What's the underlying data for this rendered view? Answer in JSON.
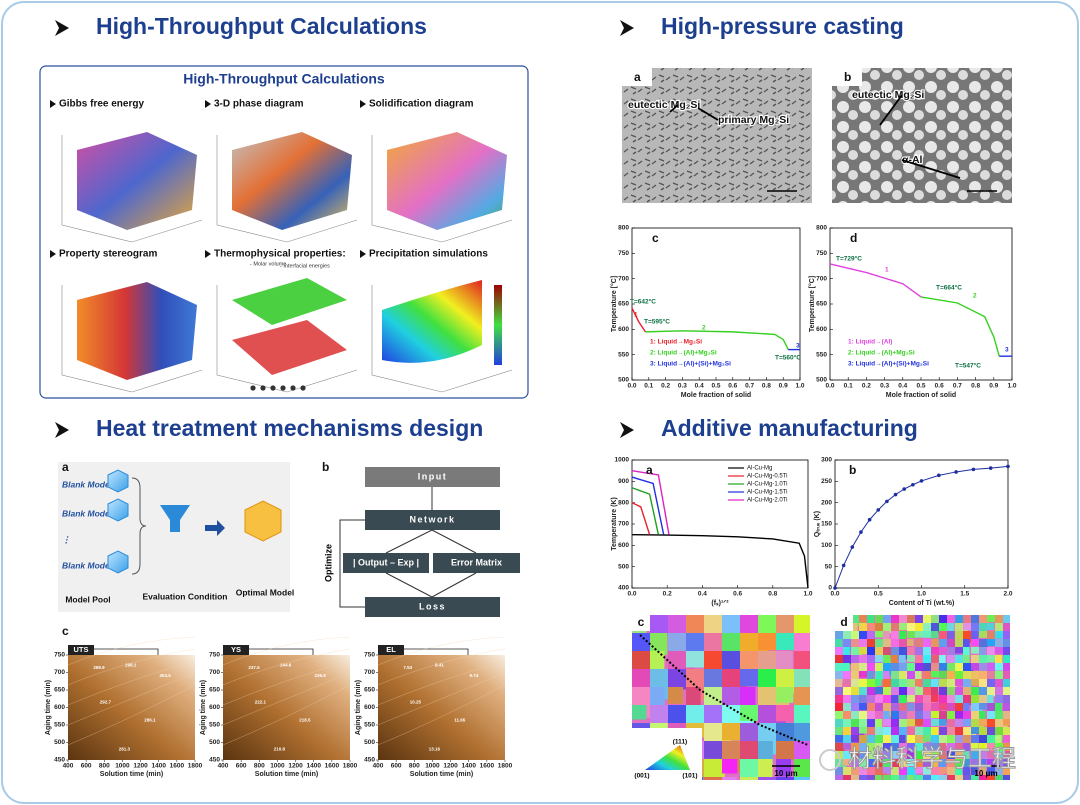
{
  "sections": [
    {
      "title": "High-Throughput Calculations"
    },
    {
      "title": "High-pressure casting"
    },
    {
      "title": "Heat treatment mechanisms design"
    },
    {
      "title": "Additive manufacturing"
    }
  ],
  "htc": {
    "title": "High-Throughput Calculations",
    "panels": [
      {
        "title": "Gibbs free energy"
      },
      {
        "title": "3-D phase diagram"
      },
      {
        "title": "Solidification diagram"
      },
      {
        "title": "Property stereogram"
      },
      {
        "title": "Thermophysical properties:",
        "notes": [
          "- Molar volume",
          "- Interfacial energies"
        ]
      },
      {
        "title": "Precipitation simulations"
      }
    ]
  },
  "micrographs": [
    {
      "label": "a",
      "notes": [
        "eutectic Mg₂Si",
        "primary Mg₂Si"
      ]
    },
    {
      "label": "b",
      "notes": [
        "eutectic Mg₂Si",
        "α-Al"
      ]
    }
  ],
  "chart_data": [
    {
      "type": "line",
      "label": "c",
      "xlabel": "Mole fraction of solid",
      "ylabel": "Temperature [°C]",
      "xlim": [
        0,
        1
      ],
      "ylim": [
        500,
        800
      ],
      "xticks": [
        {
          "value": 0,
          "label": "0.0"
        },
        0.1,
        0.2,
        0.3,
        0.4,
        0.5,
        0.6,
        0.7,
        0.8,
        0.9,
        {
          "value": 1,
          "label": "1.0"
        }
      ],
      "yticks": [
        500,
        550,
        600,
        650,
        700,
        750,
        800
      ],
      "legend": "lower left",
      "series": [
        {
          "name": "1: Liquid→Mg₂Si",
          "color": "#e8202a",
          "x": [
            0,
            0.04,
            0.08
          ],
          "values": [
            642,
            615,
            595
          ]
        },
        {
          "name": "2: Liquid→(Al)+Mg₂Si",
          "color": "#35d020",
          "x": [
            0.08,
            0.3,
            0.6,
            0.85,
            0.9,
            0.93
          ],
          "values": [
            595,
            597,
            595,
            590,
            580,
            560
          ]
        },
        {
          "name": "3: Liquid→(Al)+(Si)+Mg₂Si",
          "color": "#2030e0",
          "x": [
            0.93,
            1
          ],
          "values": [
            560,
            560
          ]
        }
      ],
      "annotations": [
        "T=642°C",
        "T=595°C",
        "T=560°C",
        "1",
        "2",
        "3"
      ]
    },
    {
      "type": "line",
      "label": "d",
      "xlabel": "Mole fraction of solid",
      "ylabel": "Temperature [°C]",
      "xlim": [
        0,
        1
      ],
      "ylim": [
        500,
        800
      ],
      "xticks": [
        {
          "value": 0,
          "label": "0.0"
        },
        0.1,
        0.2,
        0.3,
        0.4,
        0.5,
        0.6,
        0.7,
        0.8,
        0.9,
        {
          "value": 1,
          "label": "1.0"
        }
      ],
      "yticks": [
        500,
        550,
        600,
        650,
        700,
        750,
        800
      ],
      "legend": "lower left",
      "series": [
        {
          "name": "1: Liquid→(Al)",
          "color": "#e040e0",
          "x": [
            0,
            0.2,
            0.4,
            0.5
          ],
          "values": [
            729,
            712,
            690,
            664
          ]
        },
        {
          "name": "2: Liquid→(Al)+Mg₂Si",
          "color": "#35d020",
          "x": [
            0.5,
            0.7,
            0.85,
            0.9,
            0.93
          ],
          "values": [
            664,
            652,
            625,
            585,
            547
          ]
        },
        {
          "name": "3: Liquid→(Al)+(Si)+Mg₂Si",
          "color": "#2030e0",
          "x": [
            0.93,
            1
          ],
          "values": [
            547,
            547
          ]
        }
      ],
      "annotations": [
        "T=729°C",
        "T=664°C",
        "T=547°C",
        "1",
        "2",
        "3"
      ]
    },
    {
      "type": "line",
      "label": "a",
      "xlabel": "(fₛ)¹ᐟ²",
      "ylabel": "Temperature (K)",
      "xlim": [
        0,
        1
      ],
      "ylim": [
        400,
        1000
      ],
      "xticks": [
        {
          "value": 0,
          "label": "0.0"
        },
        0.2,
        0.4,
        0.6,
        0.8,
        {
          "value": 1,
          "label": "1.0"
        }
      ],
      "yticks": [
        400,
        500,
        600,
        700,
        800,
        900,
        1000
      ],
      "legend": "upper right",
      "series": [
        {
          "name": "Al-Cu-Mg",
          "color": "#000000",
          "x": [
            0,
            0.2,
            0.4,
            0.6,
            0.8,
            0.95,
            0.98,
            1
          ],
          "values": [
            650,
            648,
            645,
            640,
            630,
            610,
            550,
            400
          ]
        },
        {
          "name": "Al-Cu-Mg-0.5Ti",
          "color": "#e8202a",
          "x": [
            0,
            0.05,
            0.1
          ],
          "values": [
            800,
            780,
            650
          ]
        },
        {
          "name": "Al-Cu-Mg-1.0Ti",
          "color": "#20a020",
          "x": [
            0,
            0.1,
            0.15
          ],
          "values": [
            870,
            840,
            650
          ]
        },
        {
          "name": "Al-Cu-Mg-1.5Ti",
          "color": "#2030e0",
          "x": [
            0,
            0.12,
            0.18
          ],
          "values": [
            920,
            890,
            650
          ]
        },
        {
          "name": "Al-Cu-Mg-2.0Ti",
          "color": "#e020c0",
          "x": [
            0,
            0.15,
            0.21
          ],
          "values": [
            950,
            930,
            650
          ]
        }
      ]
    },
    {
      "type": "scatter",
      "label": "b",
      "xlabel": "Content of Ti (wt.%)",
      "ylabel": "Qₜᵣᵤₑ (K)",
      "xlim": [
        0,
        2
      ],
      "ylim": [
        0,
        300
      ],
      "xticks": [
        {
          "value": 0,
          "label": "0.0"
        },
        0.5,
        {
          "value": 1,
          "label": "1.0"
        },
        1.5,
        {
          "value": 2,
          "label": "2.0"
        }
      ],
      "yticks": [
        0,
        50,
        100,
        150,
        200,
        250,
        300
      ],
      "markers": true,
      "series": [
        {
          "color": "#1f2fa0",
          "x": [
            0,
            0.1,
            0.2,
            0.3,
            0.4,
            0.5,
            0.6,
            0.7,
            0.8,
            0.9,
            1,
            1.2,
            1.4,
            1.6,
            1.8,
            2
          ],
          "values": [
            0,
            53,
            96,
            131,
            160,
            183,
            203,
            219,
            232,
            242,
            251,
            264,
            272,
            278,
            281,
            285
          ]
        }
      ]
    }
  ],
  "heat_treatment": {
    "a": {
      "label": "a",
      "models": [
        "Blank Model 1",
        "Blank Model 2",
        "⋮",
        "Blank Model N"
      ],
      "captions": [
        "Model Pool",
        "Evaluation Condition",
        "Optimal Model"
      ]
    },
    "b": {
      "label": "b",
      "boxes": [
        "Input",
        "Network",
        "| Output – Exp |",
        "Error Matrix",
        "Loss"
      ],
      "loop": "Optimize"
    },
    "c": {
      "label": "c",
      "xlabel": "Solution time (min)",
      "ylabel": "Aging time (min)",
      "xticks": [
        400,
        600,
        800,
        1000,
        1200,
        1400,
        1600,
        1800
      ],
      "yticks": [
        450,
        500,
        550,
        600,
        650,
        700,
        750
      ],
      "maps": [
        {
          "title": "UTS",
          "contours": [
            289.9,
            298.1,
            304.5,
            292.7,
            286.1,
            281.3
          ]
        },
        {
          "title": "YS",
          "contours": [
            237.5,
            244.6,
            226.9,
            222.1,
            218.5,
            210.8
          ]
        },
        {
          "title": "EL",
          "contours": [
            7.53,
            8.41,
            9.74,
            10.25,
            11.65,
            13.16
          ]
        }
      ]
    }
  },
  "am_images": [
    {
      "label": "c",
      "scale": "10 μm",
      "ipf": [
        "(111)",
        "(001)",
        "(101)"
      ]
    },
    {
      "label": "d",
      "scale": "10 μm"
    }
  ],
  "watermark": "材料科学与工程"
}
